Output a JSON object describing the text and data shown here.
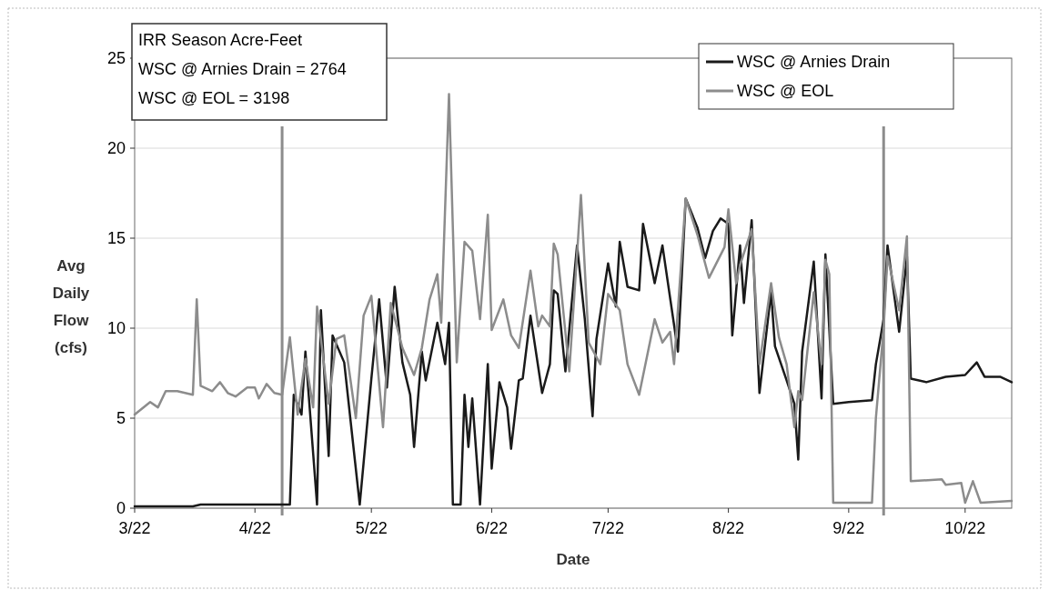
{
  "chart_data": {
    "type": "line",
    "xlabel": "Date",
    "ylabel": "Avg Daily Flow (cfs)",
    "annotations": [
      "IRR Season Acre-Feet",
      "WSC @ Arnies Drain = 2764",
      "WSC @ EOL = 3198"
    ],
    "xlim": [
      "--03-22",
      "--11-03"
    ],
    "xticks": [
      {
        "value": "--03-22",
        "label": "3/22"
      },
      {
        "value": "--04-22",
        "label": "4/22"
      },
      {
        "value": "--05-22",
        "label": "5/22"
      },
      {
        "value": "--06-22",
        "label": "6/22"
      },
      {
        "value": "--07-22",
        "label": "7/22"
      },
      {
        "value": "--08-22",
        "label": "8/22"
      },
      {
        "value": "--09-22",
        "label": "9/22"
      },
      {
        "value": "--10-22",
        "label": "10/22"
      }
    ],
    "ylim": [
      0,
      25
    ],
    "yticks": [
      0,
      5,
      10,
      15,
      20,
      25
    ],
    "grid": "y",
    "legend": "top right",
    "marker": "none",
    "line_style": "solid",
    "ref_lines": [
      {
        "axis": "x",
        "value": "--04-29",
        "color": "#8c8c8c"
      },
      {
        "axis": "x",
        "value": "--10-01",
        "color": "#8c8c8c"
      }
    ],
    "series": [
      {
        "name": "WSC @ Arnies Drain",
        "color": "#1a1a1a",
        "x": [
          "--03-22",
          "--04-06",
          "--04-08",
          "--04-30",
          "--05-01",
          "--05-02",
          "--05-04",
          "--05-05",
          "--05-08",
          "--05-09",
          "--05-11",
          "--05-12",
          "--05-15",
          "--05-19",
          "--05-22",
          "--05-24",
          "--05-26",
          "--05-28",
          "--05-30",
          "--06-01",
          "--06-02",
          "--06-04",
          "--06-05",
          "--06-08",
          "--06-10",
          "--06-11",
          "--06-12",
          "--06-14",
          "--06-15",
          "--06-16",
          "--06-17",
          "--06-19",
          "--06-21",
          "--06-22",
          "--06-24",
          "--06-26",
          "--06-27",
          "--06-29",
          "--06-30",
          "--07-02",
          "--07-05",
          "--07-07",
          "--07-08",
          "--07-09",
          "--07-11",
          "--07-14",
          "--07-16",
          "--07-18",
          "--07-19",
          "--07-22",
          "--07-24",
          "--07-25",
          "--07-27",
          "--07-30",
          "--07-31",
          "--08-03",
          "--08-05",
          "--08-09",
          "--08-11",
          "--08-14",
          "--08-16",
          "--08-18",
          "--08-20",
          "--08-22",
          "--08-23",
          "--08-25",
          "--08-26",
          "--08-28",
          "--08-30",
          "--09-02",
          "--09-03",
          "--09-06",
          "--09-08",
          "--09-09",
          "--09-10",
          "--09-13",
          "--09-15",
          "--09-16",
          "--09-18",
          "--09-22",
          "--09-28",
          "--09-29",
          "--10-01",
          "--10-02",
          "--10-05",
          "--10-07",
          "--10-08",
          "--10-12",
          "--10-17",
          "--10-22",
          "--10-25",
          "--10-27",
          "--10-31",
          "--11-03"
        ],
        "values": [
          0.1,
          0.1,
          0.2,
          0.2,
          0.2,
          6.3,
          5.2,
          8.7,
          0.2,
          11.0,
          2.9,
          9.6,
          8.1,
          0.2,
          7.2,
          11.6,
          6.7,
          12.3,
          8.1,
          6.3,
          3.4,
          8.7,
          7.1,
          10.3,
          8.0,
          10.3,
          0.2,
          0.2,
          6.3,
          3.4,
          6.1,
          0.2,
          8.0,
          2.2,
          7.0,
          5.6,
          3.3,
          7.1,
          7.2,
          10.7,
          6.4,
          8.0,
          12.1,
          11.9,
          7.6,
          14.6,
          10.5,
          5.1,
          9.4,
          13.6,
          11.2,
          14.8,
          12.3,
          12.1,
          15.8,
          12.5,
          14.6,
          8.7,
          17.2,
          15.6,
          13.9,
          15.4,
          16.1,
          15.8,
          9.6,
          14.6,
          11.4,
          16.0,
          6.4,
          12.0,
          9.0,
          7.1,
          5.8,
          2.7,
          8.7,
          13.7,
          6.1,
          14.1,
          5.8,
          5.9,
          6.0,
          8.0,
          10.5,
          14.6,
          9.8,
          14.0,
          7.2,
          7.0,
          7.3,
          7.4,
          8.1,
          7.3,
          7.3,
          7.0
        ]
      },
      {
        "name": "WSC @ EOL",
        "color": "#8c8c8c",
        "x": [
          "--03-22",
          "--03-26",
          "--03-28",
          "--03-30",
          "--04-02",
          "--04-06",
          "--04-07",
          "--04-08",
          "--04-11",
          "--04-13",
          "--04-15",
          "--04-17",
          "--04-20",
          "--04-22",
          "--04-23",
          "--04-25",
          "--04-27",
          "--04-29",
          "--05-01",
          "--05-03",
          "--05-05",
          "--05-07",
          "--05-08",
          "--05-11",
          "--05-13",
          "--05-15",
          "--05-18",
          "--05-20",
          "--05-22",
          "--05-25",
          "--05-27",
          "--05-30",
          "--06-02",
          "--06-04",
          "--06-06",
          "--06-08",
          "--06-09",
          "--06-11",
          "--06-13",
          "--06-15",
          "--06-17",
          "--06-19",
          "--06-21",
          "--06-22",
          "--06-25",
          "--06-27",
          "--06-29",
          "--07-02",
          "--07-04",
          "--07-05",
          "--07-07",
          "--07-08",
          "--07-09",
          "--07-12",
          "--07-15",
          "--07-17",
          "--07-20",
          "--07-22",
          "--07-25",
          "--07-27",
          "--07-30",
          "--08-03",
          "--08-05",
          "--08-07",
          "--08-08",
          "--08-11",
          "--08-14",
          "--08-17",
          "--08-21",
          "--08-22",
          "--08-24",
          "--08-25",
          "--08-28",
          "--08-30",
          "--09-02",
          "--09-04",
          "--09-06",
          "--09-08",
          "--09-09",
          "--09-10",
          "--09-13",
          "--09-15",
          "--09-16",
          "--09-17",
          "--09-18",
          "--09-28",
          "--09-29",
          "--10-01",
          "--10-02",
          "--10-05",
          "--10-07",
          "--10-08",
          "--10-16",
          "--10-17",
          "--10-21",
          "--10-22",
          "--10-24",
          "--10-26",
          "--11-03"
        ],
        "values": [
          5.2,
          5.9,
          5.6,
          6.5,
          6.5,
          6.3,
          11.6,
          6.8,
          6.5,
          7.0,
          6.4,
          6.2,
          6.7,
          6.7,
          6.1,
          6.9,
          6.4,
          6.3,
          9.5,
          5.2,
          8.3,
          5.6,
          11.2,
          5.8,
          9.4,
          9.6,
          5.0,
          10.7,
          11.8,
          4.5,
          11.4,
          8.9,
          7.4,
          8.9,
          11.6,
          13.0,
          10.3,
          23.0,
          8.1,
          14.8,
          14.3,
          10.5,
          16.3,
          9.9,
          11.6,
          9.6,
          8.9,
          13.2,
          10.1,
          10.7,
          10.1,
          14.7,
          14.1,
          7.6,
          17.4,
          9.2,
          8.0,
          11.9,
          11.0,
          8.0,
          6.3,
          10.5,
          9.2,
          9.8,
          8.0,
          17.2,
          15.2,
          12.8,
          14.5,
          16.6,
          12.5,
          13.5,
          15.5,
          8.0,
          12.5,
          9.5,
          8.0,
          4.5,
          6.5,
          6.0,
          12.0,
          8.0,
          13.8,
          13.0,
          0.3,
          0.3,
          5.0,
          10.0,
          14.0,
          11.0,
          15.1,
          1.5,
          1.6,
          1.3,
          1.4,
          0.3,
          1.5,
          0.3,
          0.4
        ]
      }
    ]
  }
}
